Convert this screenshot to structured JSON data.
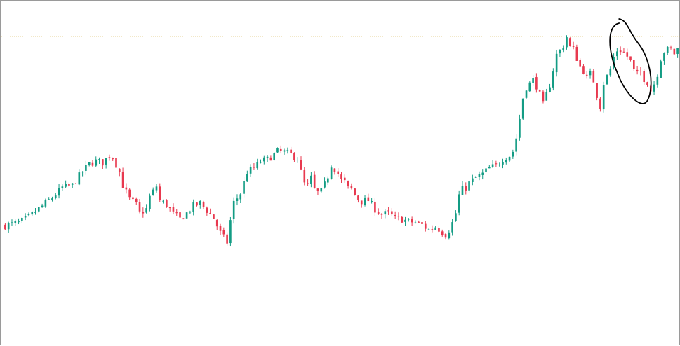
{
  "colors": {
    "up": "#139c84",
    "down": "#e8394f",
    "wick_up": "#139c84",
    "wick_down": "#e8394f",
    "resistance": "#c9a227",
    "annotation": "#000000",
    "border": "#9a9a9a",
    "background": "#ffffff"
  },
  "chart_data": {
    "type": "candlestick",
    "title": "",
    "xlabel": "",
    "ylabel": "",
    "axes_visible": false,
    "grid": false,
    "ylim": [
      0,
      100
    ],
    "resistance_level": 90.7,
    "annotation": {
      "shape": "hand-drawn-ellipse",
      "around_bars": [
        181,
        191
      ]
    },
    "close_path": [
      [
        0,
        34.5
      ],
      [
        4,
        35.3
      ],
      [
        7,
        37
      ],
      [
        11,
        40.3
      ],
      [
        14,
        42.8
      ],
      [
        17,
        45.8
      ],
      [
        20,
        46.4
      ],
      [
        23,
        50.6
      ],
      [
        25,
        52.8
      ],
      [
        27,
        53.6
      ],
      [
        29,
        53.2
      ],
      [
        31,
        55.3
      ],
      [
        32,
        54.9
      ],
      [
        34,
        50.4
      ],
      [
        35,
        46.4
      ],
      [
        37,
        42.4
      ],
      [
        39,
        40.7
      ],
      [
        40,
        38.2
      ],
      [
        42,
        39.4
      ],
      [
        43,
        43
      ],
      [
        45,
        46.2
      ],
      [
        46,
        41.9
      ],
      [
        48,
        40.7
      ],
      [
        50,
        38
      ],
      [
        52,
        36.4
      ],
      [
        54,
        38.2
      ],
      [
        56,
        40.3
      ],
      [
        58,
        41.1
      ],
      [
        60,
        39
      ],
      [
        62,
        36.6
      ],
      [
        64,
        32.3
      ],
      [
        66,
        29.5
      ],
      [
        67,
        36
      ],
      [
        68,
        41.3
      ],
      [
        70,
        44.1
      ],
      [
        72,
        50.4
      ],
      [
        74,
        51.6
      ],
      [
        76,
        53.6
      ],
      [
        78,
        54.1
      ],
      [
        80,
        55.7
      ],
      [
        81,
        56.5
      ],
      [
        83,
        56.3
      ],
      [
        85,
        55.5
      ],
      [
        87,
        54.6
      ],
      [
        88,
        50.3
      ],
      [
        89,
        46.9
      ],
      [
        90,
        46.3
      ],
      [
        91,
        48.6
      ],
      [
        92,
        45.2
      ],
      [
        93,
        44.4
      ],
      [
        94,
        44.6
      ],
      [
        95,
        46.6
      ],
      [
        96,
        49.2
      ],
      [
        97,
        52.5
      ],
      [
        98,
        51.4
      ],
      [
        99,
        49.8
      ],
      [
        100,
        48
      ],
      [
        101,
        47.4
      ],
      [
        102,
        45.7
      ],
      [
        103,
        45.4
      ],
      [
        104,
        43.5
      ],
      [
        105,
        42.5
      ],
      [
        106,
        41.7
      ],
      [
        108,
        42
      ],
      [
        110,
        39.4
      ],
      [
        112,
        37.8
      ],
      [
        114,
        38.2
      ],
      [
        116,
        36.6
      ],
      [
        118,
        36.4
      ],
      [
        120,
        35.7
      ],
      [
        122,
        35.4
      ],
      [
        124,
        34.7
      ],
      [
        126,
        33.2
      ],
      [
        128,
        34.2
      ],
      [
        130,
        32.7
      ],
      [
        131,
        31.8
      ],
      [
        132,
        33.3
      ],
      [
        133,
        35.3
      ],
      [
        134,
        38.2
      ],
      [
        135,
        43.5
      ],
      [
        136,
        45.3
      ],
      [
        137,
        45.8
      ],
      [
        138,
        47.1
      ],
      [
        140,
        48.7
      ],
      [
        142,
        49.8
      ],
      [
        144,
        51.6
      ],
      [
        146,
        52.2
      ],
      [
        148,
        54.3
      ],
      [
        150,
        55.3
      ],
      [
        151,
        56.5
      ],
      [
        152,
        60.5
      ],
      [
        153,
        66.2
      ],
      [
        154,
        72.4
      ],
      [
        155,
        75.6
      ],
      [
        156,
        76.6
      ],
      [
        157,
        77.8
      ],
      [
        158,
        76
      ],
      [
        159,
        73.3
      ],
      [
        160,
        70.4
      ],
      [
        161,
        73.3
      ],
      [
        162,
        76.4
      ],
      [
        163,
        80.7
      ],
      [
        164,
        85.2
      ],
      [
        165,
        86.4
      ],
      [
        166,
        87.9
      ],
      [
        167,
        90.5
      ],
      [
        168,
        87.5
      ],
      [
        169,
        86.8
      ],
      [
        170,
        84.2
      ],
      [
        171,
        81.7
      ],
      [
        172,
        80.5
      ],
      [
        173,
        78.3
      ],
      [
        174,
        79.4
      ],
      [
        175,
        77.5
      ],
      [
        176,
        73.2
      ],
      [
        177,
        70
      ],
      [
        178,
        76.8
      ],
      [
        179,
        78.8
      ],
      [
        180,
        81
      ],
      [
        181,
        84.4
      ],
      [
        182,
        86.5
      ],
      [
        183,
        86.6
      ],
      [
        184,
        85.9
      ],
      [
        185,
        84.7
      ],
      [
        186,
        83.2
      ],
      [
        187,
        80.4
      ],
      [
        188,
        79.3
      ],
      [
        189,
        80.2
      ],
      [
        190,
        78.1
      ],
      [
        191,
        77
      ],
      [
        192,
        74.6
      ],
      [
        193,
        76.6
      ],
      [
        194,
        79.6
      ],
      [
        195,
        84.1
      ],
      [
        196,
        86.2
      ],
      [
        197,
        86.7
      ],
      [
        198,
        86.7
      ],
      [
        199,
        85.6
      ],
      [
        200,
        86.9
      ]
    ]
  }
}
